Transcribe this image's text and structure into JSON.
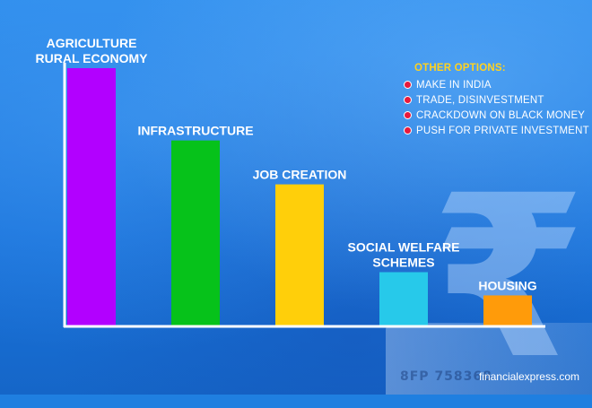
{
  "chart_data": {
    "type": "bar",
    "categories": [
      [
        "AGRICULTURE",
        "RURAL ECONOMY"
      ],
      [
        "INFRASTRUCTURE"
      ],
      [
        "JOB CREATION"
      ],
      [
        "SOCIAL WELFARE",
        "SCHEMES"
      ],
      [
        "HOUSING"
      ]
    ],
    "values": [
      100,
      72,
      55,
      21,
      12
    ],
    "colors": [
      "#b200ff",
      "#06c21a",
      "#ffcf0a",
      "#27c9ea",
      "#ff9b0a"
    ],
    "ylim": [
      0,
      100
    ],
    "axis_color": "#ffffff",
    "grid": false
  },
  "legend": {
    "title": "OTHER OPTIONS:",
    "items": [
      "MAKE IN INDIA",
      "TRADE, DISINVESTMENT",
      "CRACKDOWN ON BLACK MONEY",
      "PUSH FOR PRIVATE INVESTMENT"
    ]
  },
  "background": {
    "rupee_symbol": "₹",
    "note_serial": "8FP  758368"
  },
  "credit": "financialexpress.com"
}
